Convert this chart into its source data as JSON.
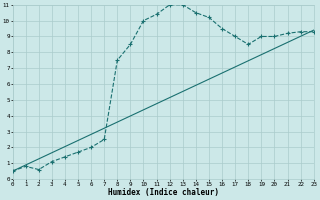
{
  "title": "",
  "xlabel": "Humidex (Indice chaleur)",
  "bg_color": "#cce8e8",
  "grid_color": "#aacccc",
  "line_color": "#1a7070",
  "xlim": [
    0,
    23
  ],
  "ylim": [
    0,
    11
  ],
  "xticks": [
    0,
    1,
    2,
    3,
    4,
    5,
    6,
    7,
    8,
    9,
    10,
    11,
    12,
    13,
    14,
    15,
    16,
    17,
    18,
    19,
    20,
    21,
    22,
    23
  ],
  "yticks": [
    0,
    1,
    2,
    3,
    4,
    5,
    6,
    7,
    8,
    9,
    10,
    11
  ],
  "curve_x": [
    0,
    1,
    2,
    3,
    4,
    5,
    6,
    7,
    8,
    9,
    10,
    11,
    12,
    13,
    14,
    15,
    16,
    17,
    18,
    19,
    20,
    21,
    22,
    23
  ],
  "curve_y": [
    0.5,
    0.8,
    0.6,
    1.1,
    1.4,
    1.7,
    2.0,
    2.5,
    7.5,
    8.5,
    10.0,
    10.4,
    11.0,
    11.0,
    10.5,
    10.2,
    9.5,
    9.0,
    8.5,
    9.0,
    9.0,
    9.2,
    9.3,
    9.3
  ],
  "line_x": [
    0,
    23
  ],
  "line_y": [
    0.5,
    9.4
  ],
  "xlabel_fontsize": 5.5,
  "tick_fontsize": 4.2
}
